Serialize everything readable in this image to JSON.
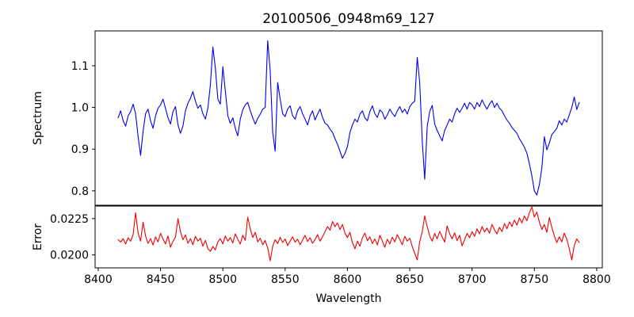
{
  "figure": {
    "background": "#ffffff",
    "frame_color": "#000000"
  },
  "chart_data": {
    "type": "line",
    "title": "20100506_0948m69_127",
    "xlabel": "Wavelength",
    "grid": false,
    "legend": null,
    "x_start": 8416,
    "x_step": 2,
    "xlim": [
      8397.5,
      8804.5
    ],
    "xticks": [
      8400,
      8450,
      8500,
      8550,
      8600,
      8650,
      8700,
      8750,
      8800
    ],
    "xtick_labels": [
      "8400",
      "8450",
      "8500",
      "8550",
      "8600",
      "8650",
      "8700",
      "8750",
      "8800"
    ],
    "subplots": [
      {
        "name": "spectrum",
        "ylabel": "Spectrum",
        "color": "#0000ee",
        "ylim": [
          0.7645,
          1.1835
        ],
        "ytick_values": [
          0.8,
          0.9,
          1.0,
          1.1
        ],
        "ytick_labels": [
          "0.8",
          "0.9",
          "1.0",
          "1.1"
        ],
        "values": [
          0.975,
          0.992,
          0.968,
          0.955,
          0.98,
          0.99,
          1.008,
          0.985,
          0.93,
          0.885,
          0.942,
          0.985,
          0.996,
          0.968,
          0.95,
          0.98,
          0.998,
          1.006,
          1.02,
          0.998,
          0.975,
          0.96,
          0.99,
          1.002,
          0.958,
          0.938,
          0.956,
          0.992,
          1.01,
          1.022,
          1.038,
          1.015,
          0.998,
          1.006,
          0.985,
          0.972,
          0.998,
          1.055,
          1.145,
          1.095,
          1.02,
          1.008,
          1.098,
          1.04,
          0.98,
          0.962,
          0.975,
          0.95,
          0.932,
          0.972,
          0.994,
          1.006,
          1.012,
          0.992,
          0.975,
          0.96,
          0.974,
          0.984,
          0.996,
          1.0,
          1.16,
          1.09,
          0.94,
          0.895,
          1.06,
          1.02,
          0.985,
          0.978,
          0.996,
          1.004,
          0.98,
          0.972,
          0.992,
          1.002,
          0.985,
          0.972,
          0.958,
          0.98,
          0.992,
          0.97,
          0.984,
          0.996,
          0.976,
          0.962,
          0.958,
          0.948,
          0.94,
          0.925,
          0.912,
          0.895,
          0.878,
          0.89,
          0.906,
          0.94,
          0.958,
          0.972,
          0.965,
          0.984,
          0.992,
          0.975,
          0.968,
          0.99,
          1.004,
          0.985,
          0.976,
          0.994,
          0.988,
          0.972,
          0.982,
          0.996,
          0.986,
          0.978,
          0.992,
          1.002,
          0.988,
          0.996,
          0.984,
          1.002,
          1.01,
          1.015,
          1.12,
          1.06,
          0.92,
          0.828,
          0.955,
          0.99,
          1.005,
          0.96,
          0.945,
          0.932,
          0.92,
          0.945,
          0.958,
          0.972,
          0.965,
          0.985,
          0.998,
          0.988,
          0.998,
          1.01,
          0.996,
          1.012,
          1.006,
          0.996,
          1.012,
          1.002,
          1.018,
          1.006,
          0.996,
          1.008,
          1.016,
          1.0,
          1.01,
          0.998,
          0.992,
          0.98,
          0.97,
          0.962,
          0.952,
          0.945,
          0.938,
          0.925,
          0.915,
          0.905,
          0.89,
          0.865,
          0.835,
          0.8,
          0.79,
          0.815,
          0.855,
          0.93,
          0.898,
          0.915,
          0.935,
          0.942,
          0.95,
          0.968,
          0.958,
          0.972,
          0.965,
          0.982,
          1.0,
          1.025,
          0.995,
          1.012
        ]
      },
      {
        "name": "error",
        "ylabel": "Error",
        "color": "#ee0000",
        "ylim": [
          0.01911,
          0.02339
        ],
        "ytick_values": [
          0.02,
          0.0225
        ],
        "ytick_labels": [
          "0.0200",
          "0.0225"
        ],
        "values": [
          0.02105,
          0.02088,
          0.02112,
          0.02075,
          0.02118,
          0.02095,
          0.0214,
          0.0229,
          0.0215,
          0.02095,
          0.02225,
          0.0213,
          0.0208,
          0.02112,
          0.02068,
          0.02125,
          0.0209,
          0.02148,
          0.0211,
          0.02075,
          0.0213,
          0.02052,
          0.02095,
          0.02122,
          0.0225,
          0.0216,
          0.02105,
          0.02138,
          0.0208,
          0.02112,
          0.0207,
          0.02128,
          0.02095,
          0.02115,
          0.0206,
          0.021,
          0.02042,
          0.02025,
          0.02058,
          0.02035,
          0.0209,
          0.02112,
          0.02075,
          0.0213,
          0.02095,
          0.0212,
          0.02082,
          0.02145,
          0.02108,
          0.02075,
          0.02135,
          0.021,
          0.0226,
          0.0218,
          0.0212,
          0.02155,
          0.0209,
          0.02115,
          0.0207,
          0.021,
          0.02048,
          0.0196,
          0.0206,
          0.02105,
          0.02078,
          0.02122,
          0.02085,
          0.0211,
          0.02065,
          0.02095,
          0.02125,
          0.02088,
          0.02108,
          0.0207,
          0.02102,
          0.02135,
          0.02092,
          0.02118,
          0.0208,
          0.02105,
          0.0214,
          0.02095,
          0.02125,
          0.0216,
          0.02195,
          0.0217,
          0.0223,
          0.02195,
          0.0222,
          0.02175,
          0.0221,
          0.0215,
          0.0212,
          0.02155,
          0.02085,
          0.02042,
          0.02095,
          0.0206,
          0.02118,
          0.0215,
          0.02098,
          0.02125,
          0.02078,
          0.0211,
          0.02068,
          0.02135,
          0.02095,
          0.02052,
          0.02108,
          0.02075,
          0.02122,
          0.0209,
          0.0214,
          0.02105,
          0.0207,
          0.02128,
          0.02095,
          0.02115,
          0.02058,
          0.02012,
          0.01965,
          0.0209,
          0.0216,
          0.02268,
          0.02195,
          0.0213,
          0.02095,
          0.02148,
          0.0211,
          0.02162,
          0.02125,
          0.02088,
          0.022,
          0.02145,
          0.0211,
          0.02152,
          0.02098,
          0.02135,
          0.02062,
          0.02105,
          0.02148,
          0.02118,
          0.0216,
          0.02128,
          0.0218,
          0.02145,
          0.02195,
          0.02158,
          0.02185,
          0.0215,
          0.0221,
          0.02172,
          0.02145,
          0.0219,
          0.0216,
          0.02215,
          0.0218,
          0.02228,
          0.02195,
          0.0224,
          0.02205,
          0.02255,
          0.0222,
          0.02268,
          0.02235,
          0.0229,
          0.0233,
          0.0226,
          0.02295,
          0.02225,
          0.02175,
          0.0221,
          0.02155,
          0.02258,
          0.0219,
          0.0213,
          0.02085,
          0.02125,
          0.0209,
          0.0215,
          0.02108,
          0.02045,
          0.01965,
          0.02065,
          0.0211,
          0.02085
        ]
      }
    ]
  }
}
